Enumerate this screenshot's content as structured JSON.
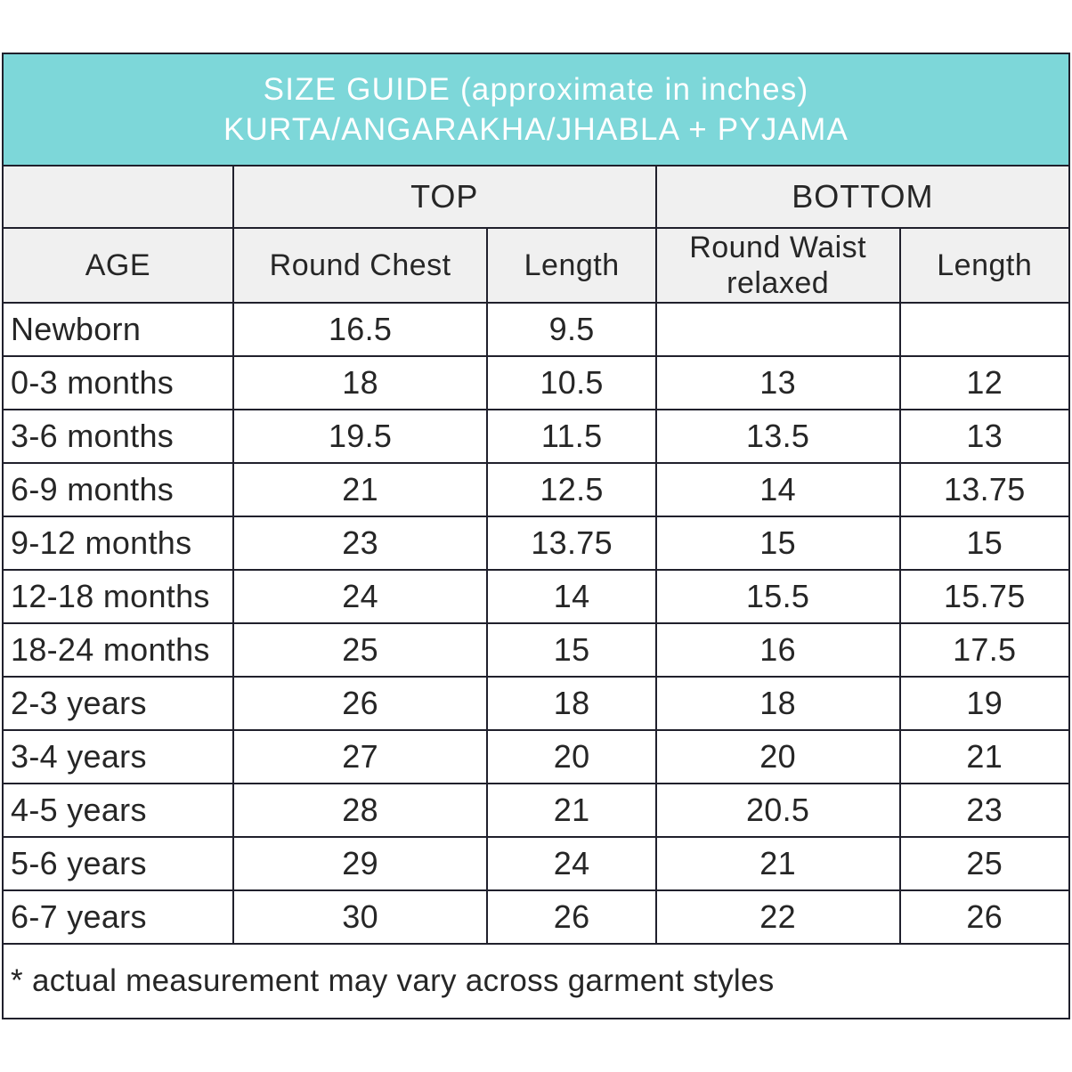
{
  "title": {
    "line1": "SIZE GUIDE (approximate in inches)",
    "line2": "KURTA/ANGARAKHA/JHABLA + PYJAMA"
  },
  "group_headers": {
    "top": "TOP",
    "bottom": "BOTTOM"
  },
  "columns": [
    "AGE",
    "Round Chest",
    "Length",
    "Round Waist relaxed",
    "Length"
  ],
  "rows": [
    {
      "age": "Newborn",
      "round_chest": "16.5",
      "top_length": "9.5",
      "round_waist": "",
      "bottom_length": ""
    },
    {
      "age": "0-3 months",
      "round_chest": "18",
      "top_length": "10.5",
      "round_waist": "13",
      "bottom_length": "12"
    },
    {
      "age": "3-6 months",
      "round_chest": "19.5",
      "top_length": "11.5",
      "round_waist": "13.5",
      "bottom_length": "13"
    },
    {
      "age": "6-9 months",
      "round_chest": "21",
      "top_length": "12.5",
      "round_waist": "14",
      "bottom_length": "13.75"
    },
    {
      "age": "9-12 months",
      "round_chest": "23",
      "top_length": "13.75",
      "round_waist": "15",
      "bottom_length": "15"
    },
    {
      "age": "12-18 months",
      "round_chest": "24",
      "top_length": "14",
      "round_waist": "15.5",
      "bottom_length": "15.75"
    },
    {
      "age": "18-24 months",
      "round_chest": "25",
      "top_length": "15",
      "round_waist": "16",
      "bottom_length": "17.5"
    },
    {
      "age": "2-3 years",
      "round_chest": "26",
      "top_length": "18",
      "round_waist": "18",
      "bottom_length": "19"
    },
    {
      "age": "3-4 years",
      "round_chest": "27",
      "top_length": "20",
      "round_waist": "20",
      "bottom_length": "21"
    },
    {
      "age": "4-5 years",
      "round_chest": "28",
      "top_length": "21",
      "round_waist": "20.5",
      "bottom_length": "23"
    },
    {
      "age": "5-6 years",
      "round_chest": "29",
      "top_length": "24",
      "round_waist": "21",
      "bottom_length": "25"
    },
    {
      "age": "6-7 years",
      "round_chest": "30",
      "top_length": "26",
      "round_waist": "22",
      "bottom_length": "26"
    }
  ],
  "footnote": "* actual measurement may vary across garment styles",
  "colors": {
    "banner_bg": "#7dd7d9",
    "banner_text": "#ffffff",
    "header_bg": "#f0f0f0",
    "border": "#20202c",
    "body_text": "#262626",
    "page_bg": "#ffffff"
  }
}
